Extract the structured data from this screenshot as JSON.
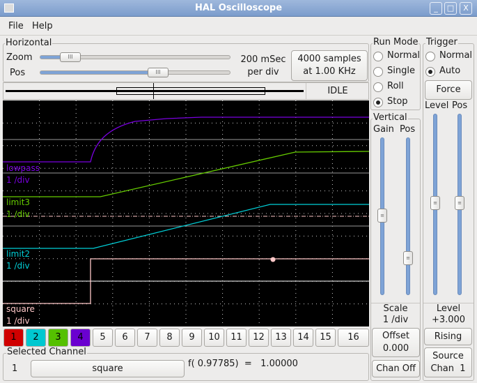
{
  "window": {
    "title": "HAL Oscilloscope",
    "controls": [
      "_",
      "□",
      "X"
    ]
  },
  "menu": [
    "File",
    "Help"
  ],
  "horizontal": {
    "label": "Horizontal",
    "zoom_label": "Zoom",
    "pos_label": "Pos",
    "zoom_value": 0.18,
    "pos_value": 0.6,
    "time_div_1": "200 mSec",
    "time_div_2": "per div",
    "samples_1": "4000 samples",
    "samples_2": "at 1.00 KHz",
    "status": "IDLE"
  },
  "run_mode": {
    "label": "Run Mode",
    "options": [
      "Normal",
      "Single",
      "Roll",
      "Stop"
    ],
    "selected": "Stop"
  },
  "trigger": {
    "label": "Trigger",
    "options": [
      "Normal",
      "Auto"
    ],
    "selected": "Auto",
    "force": "Force",
    "level_label": "Level",
    "pos_label": "Pos",
    "level_caption": "Level",
    "level_value": "+3.000",
    "edge": "Rising",
    "source_1": "Source",
    "source_2": "Chan  1"
  },
  "vertical": {
    "label": "Vertical",
    "gain_label": "Gain",
    "pos_label": "Pos",
    "scale_label": "Scale",
    "scale_value": "1 /div",
    "offset_label": "Offset",
    "offset_value": "0.000",
    "chan_off": "Chan Off"
  },
  "traces": [
    {
      "name": "lowpass",
      "scale": "1 /div",
      "color": "#7a00e0"
    },
    {
      "name": "limit3",
      "scale": "1 /div",
      "color": "#66cc00"
    },
    {
      "name": "limit2",
      "scale": "1 /div",
      "color": "#00d0d8"
    },
    {
      "name": "square",
      "scale": "1 /div",
      "color": "#ffc8c8"
    }
  ],
  "channels": [
    {
      "label": "1",
      "color": "#d00000"
    },
    {
      "label": "2",
      "color": "#00c8d0"
    },
    {
      "label": "3",
      "color": "#55c000"
    },
    {
      "label": "4",
      "color": "#6a00d0"
    },
    {
      "label": "5"
    },
    {
      "label": "6"
    },
    {
      "label": "7"
    },
    {
      "label": "8"
    },
    {
      "label": "9"
    },
    {
      "label": "10"
    },
    {
      "label": "11"
    },
    {
      "label": "12"
    },
    {
      "label": "13"
    },
    {
      "label": "14"
    },
    {
      "label": "15"
    },
    {
      "label": "16"
    }
  ],
  "selected_channel": {
    "label": "Selected Channel",
    "number": "1",
    "name": "square",
    "readout": "f( 0.97785)  =   1.00000"
  }
}
